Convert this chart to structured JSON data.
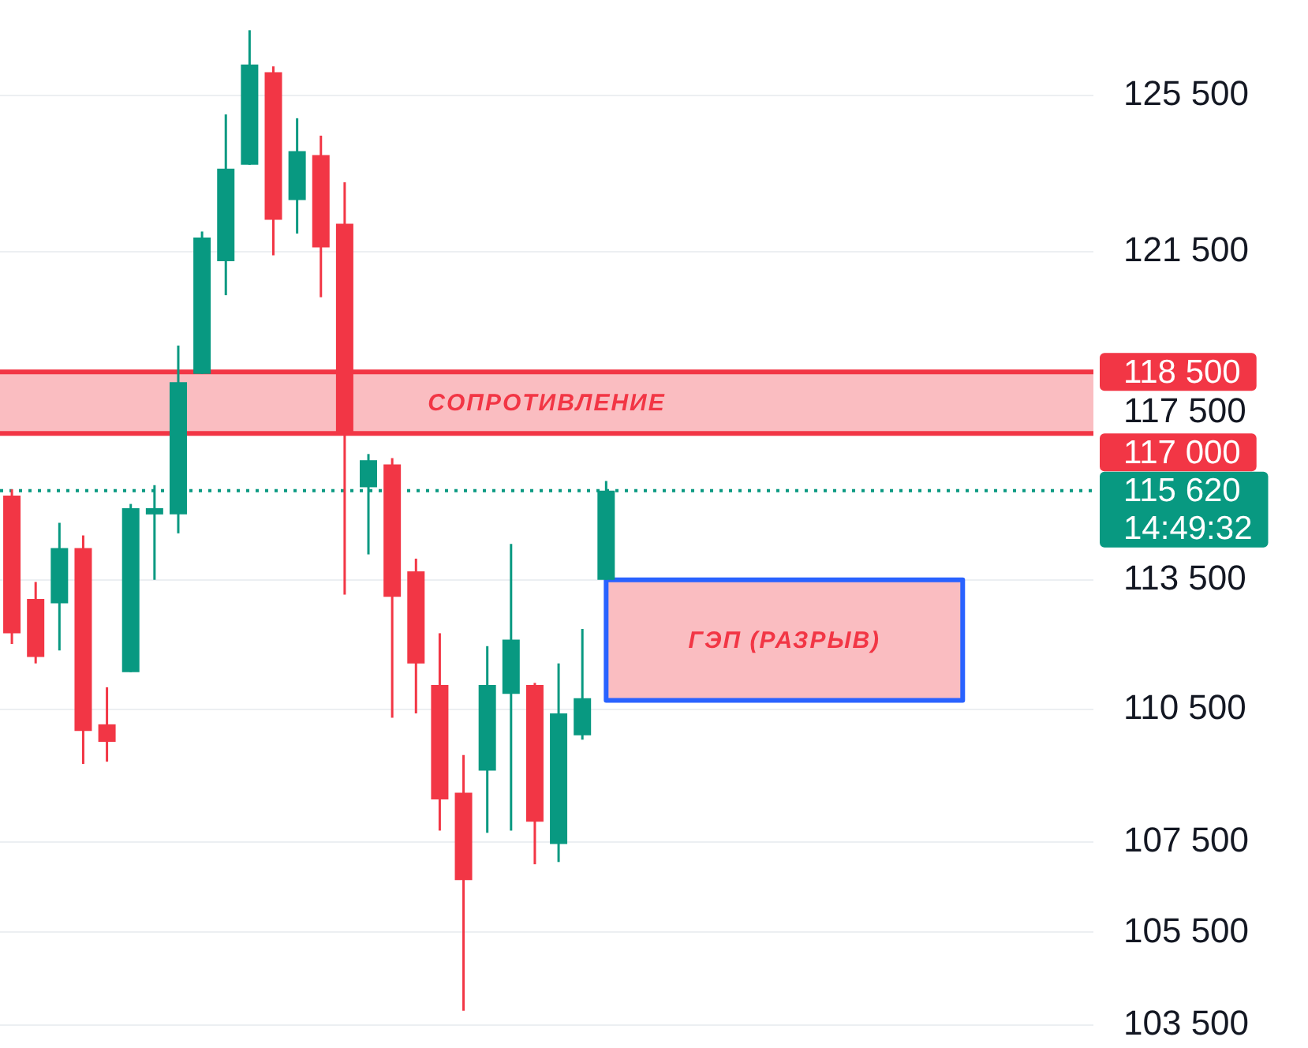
{
  "chart_data": {
    "type": "candlestick",
    "categories": [
      null,
      null,
      null,
      null,
      null,
      null,
      null,
      null,
      null,
      null,
      null,
      null,
      null,
      null,
      null,
      null,
      null,
      null,
      null,
      null,
      null,
      null,
      null,
      null,
      null,
      null,
      null,
      null,
      null,
      null,
      null,
      null,
      null,
      null,
      null,
      null,
      null,
      null,
      null,
      null,
      null,
      null,
      null,
      null,
      null,
      null
    ],
    "ohlc": [
      [
        115500,
        115650,
        112000,
        112250
      ],
      [
        113050,
        113450,
        111550,
        111700
      ],
      [
        112950,
        114850,
        111850,
        114250
      ],
      [
        114250,
        114550,
        109250,
        110000
      ],
      [
        110150,
        111000,
        109300,
        109750
      ],
      [
        111350,
        115300,
        111350,
        115200
      ],
      [
        115050,
        115750,
        113500,
        115200
      ],
      [
        115050,
        119150,
        114600,
        118250
      ],
      [
        118450,
        122000,
        118450,
        121850
      ],
      [
        121250,
        125000,
        120400,
        123600
      ],
      [
        123700,
        127200,
        123700,
        126300
      ],
      [
        126100,
        126250,
        121400,
        122300
      ],
      [
        122800,
        124900,
        121950,
        124050
      ],
      [
        123950,
        124450,
        120350,
        121600
      ],
      [
        122200,
        123250,
        113150,
        117000
      ],
      [
        115700,
        116500,
        114100,
        116350
      ],
      [
        116250,
        116400,
        110300,
        113100
      ],
      [
        113700,
        114000,
        110400,
        111550
      ],
      [
        111050,
        112250,
        107750,
        108450
      ],
      [
        108600,
        109450,
        103800,
        106650
      ],
      [
        109100,
        111950,
        107700,
        111050
      ],
      [
        110850,
        114350,
        107750,
        112100
      ],
      [
        111050,
        111100,
        107000,
        107950
      ],
      [
        107450,
        111550,
        107050,
        110400
      ],
      [
        109900,
        112350,
        109800,
        110750
      ],
      [
        113500,
        115850,
        113500,
        115620
      ],
      null,
      null,
      null,
      null,
      null,
      null,
      null,
      null,
      null,
      null,
      null,
      null,
      null,
      null,
      null,
      null,
      null,
      null,
      null,
      null
    ],
    "colors": [
      "#f23645",
      "#f23645",
      "#089981",
      "#f23645",
      "#f23645",
      "#089981",
      "#089981",
      "#089981",
      "#089981",
      "#089981",
      "#089981",
      "#f23645",
      "#089981",
      "#f23645",
      "#f23645",
      "#089981",
      "#f23645",
      "#f23645",
      "#f23645",
      "#f23645",
      "#089981",
      "#089981",
      "#f23645",
      "#089981",
      "#089981",
      "#089981",
      null,
      null,
      null,
      null,
      null,
      null,
      null,
      null,
      null,
      null,
      null,
      null,
      null,
      null,
      null,
      null,
      null,
      null,
      null,
      null
    ],
    "ylim": [
      103000,
      128000
    ],
    "yticks": [
      {
        "value": 103500,
        "label": "103 500"
      },
      {
        "value": 105500,
        "label": "105 500"
      },
      {
        "value": 107500,
        "label": "107 500"
      },
      {
        "value": 110500,
        "label": "110 500"
      },
      {
        "value": 113500,
        "label": "113 500"
      },
      {
        "value": 117500,
        "label": "117 500"
      },
      {
        "value": 121500,
        "label": "121 500"
      },
      {
        "value": 125500,
        "label": "125 500"
      }
    ],
    "log": true,
    "grid": "y",
    "tick_labels": "y",
    "ref_lines": [
      {
        "axis": "y",
        "value": 118500,
        "label": "118 500",
        "color": "#f23645"
      },
      {
        "axis": "y",
        "value": 117000,
        "label": "117 000",
        "color": "#f23645"
      },
      {
        "axis": "y",
        "value": 115620,
        "label": "115 620\n14:49:32",
        "color": "#089981",
        "line_style": "dotted"
      }
    ],
    "bands": [
      {
        "axis": "y",
        "from": 117000,
        "to": 118500,
        "label": "СОПРОТИВЛЕНИЕ",
        "color": "#fabdc1"
      },
      {
        "axis": "y",
        "from": 110700,
        "to": 113500,
        "label": "ГЭП (РАЗРЫВ)",
        "color": "#fabdc1"
      }
    ]
  }
}
